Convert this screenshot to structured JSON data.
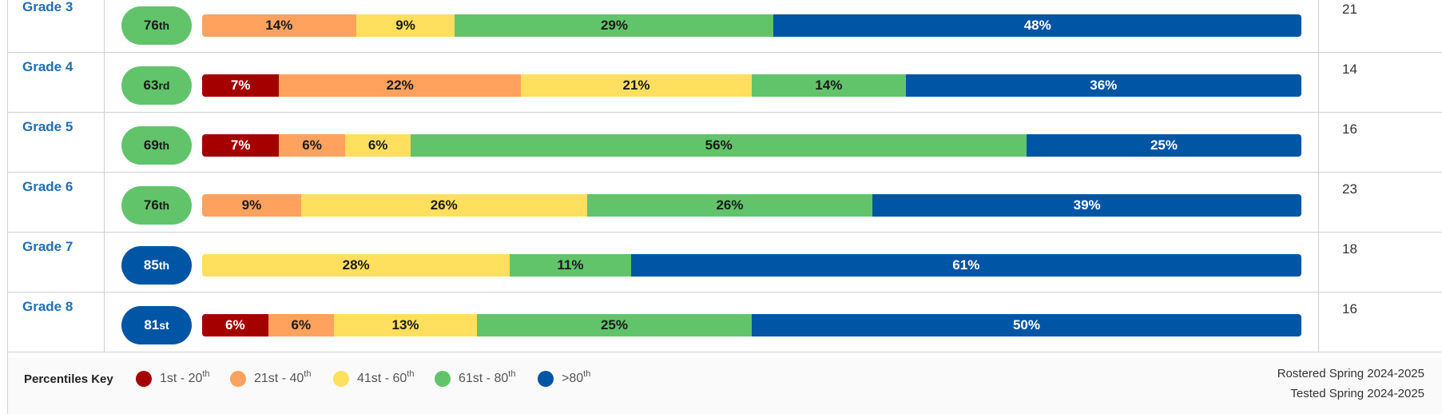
{
  "colors": {
    "p1_20": "#a50000",
    "p21_40": "#ffa25e",
    "p41_60": "#ffdf5d",
    "p61_80": "#61c46a",
    "p80_plus": "#0055a4"
  },
  "rows": [
    {
      "grade": "Grade 3",
      "rank_num": "76",
      "rank_suffix": "th",
      "rank_color": "green",
      "count": "21"
    },
    {
      "grade": "Grade 4",
      "rank_num": "63",
      "rank_suffix": "rd",
      "rank_color": "green",
      "count": "14"
    },
    {
      "grade": "Grade 5",
      "rank_num": "69",
      "rank_suffix": "th",
      "rank_color": "green",
      "count": "16"
    },
    {
      "grade": "Grade 6",
      "rank_num": "76",
      "rank_suffix": "th",
      "rank_color": "green",
      "count": "23"
    },
    {
      "grade": "Grade 7",
      "rank_num": "85",
      "rank_suffix": "th",
      "rank_color": "blue",
      "count": "18"
    },
    {
      "grade": "Grade 8",
      "rank_num": "81",
      "rank_suffix": "st",
      "rank_color": "blue",
      "count": "16"
    }
  ],
  "chart_data": {
    "type": "bar",
    "orientation": "horizontal-stacked-100",
    "categories": [
      "Grade 3",
      "Grade 4",
      "Grade 5",
      "Grade 6",
      "Grade 7",
      "Grade 8"
    ],
    "series": [
      {
        "name": "1st - 20th",
        "color": "#a50000",
        "values": [
          0,
          7,
          7,
          0,
          0,
          6
        ]
      },
      {
        "name": "21st - 40th",
        "color": "#ffa25e",
        "values": [
          14,
          22,
          6,
          9,
          0,
          6
        ]
      },
      {
        "name": "41st - 60th",
        "color": "#ffdf5d",
        "values": [
          9,
          21,
          6,
          26,
          28,
          13
        ]
      },
      {
        "name": "61st - 80th",
        "color": "#61c46a",
        "values": [
          29,
          14,
          56,
          26,
          11,
          25
        ]
      },
      {
        "name": ">80th",
        "color": "#0055a4",
        "values": [
          48,
          36,
          25,
          39,
          61,
          50
        ]
      }
    ],
    "value_suffix": "%"
  },
  "key": {
    "title": "Percentiles Key",
    "items": [
      {
        "label_main": "1st - 20",
        "label_sup": "th",
        "color_key": "p1_20"
      },
      {
        "label_main": "21st - 40",
        "label_sup": "th",
        "color_key": "p21_40"
      },
      {
        "label_main": "41st - 60",
        "label_sup": "th",
        "color_key": "p41_60"
      },
      {
        "label_main": "61st - 80",
        "label_sup": "th",
        "color_key": "p61_80"
      },
      {
        "label_main": ">80",
        "label_sup": "th",
        "color_key": "p80_plus"
      }
    ]
  },
  "meta": {
    "rostered": "Rostered Spring 2024-2025",
    "tested": "Tested Spring 2024-2025"
  }
}
